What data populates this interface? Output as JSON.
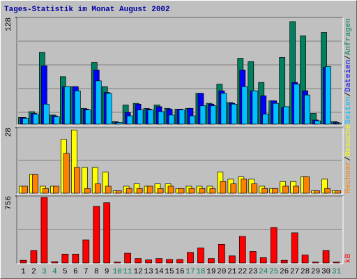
{
  "chart_data": [
    {
      "type": "bar",
      "title": "Tages-Statistik im Monat August 2002",
      "ylim": [
        0,
        128
      ],
      "yticks": [
        128
      ],
      "legend_separator": "/",
      "series": [
        {
          "name": "Anfragen",
          "color": "#008060",
          "values": [
            8,
            15,
            86,
            11,
            57,
            45,
            19,
            74,
            45,
            3,
            23,
            25,
            19,
            23,
            19,
            18,
            19,
            37,
            25,
            48,
            26,
            79,
            75,
            50,
            28,
            80,
            123,
            106,
            13,
            110,
            3
          ]
        },
        {
          "name": "Dateien",
          "color": "#0000ff",
          "values": [
            8,
            13,
            70,
            10,
            45,
            45,
            18,
            65,
            38,
            2,
            14,
            24,
            18,
            21,
            18,
            18,
            19,
            37,
            24,
            40,
            25,
            65,
            40,
            34,
            28,
            20,
            50,
            40,
            5,
            68,
            2
          ]
        },
        {
          "name": "Seiten",
          "color": "#00c0ff",
          "values": [
            7,
            12,
            24,
            9,
            45,
            40,
            17,
            52,
            37,
            2,
            10,
            17,
            17,
            15,
            11,
            17,
            10,
            22,
            22,
            37,
            24,
            45,
            40,
            12,
            25,
            21,
            48,
            35,
            4,
            69,
            1
          ]
        }
      ]
    },
    {
      "type": "bar",
      "ylim": [
        0,
        28
      ],
      "yticks": [
        28
      ],
      "legend_separator": "/",
      "series": [
        {
          "name": "Besuche",
          "color": "#ffff00",
          "values": [
            3,
            8,
            3,
            3,
            23,
            27,
            11,
            11,
            9,
            1,
            3,
            4,
            3,
            4,
            4,
            2,
            3,
            3,
            3,
            9,
            6,
            7,
            6,
            3,
            2,
            5,
            5,
            7,
            1,
            6,
            1
          ]
        },
        {
          "name": "Rechner",
          "color": "#ff8000",
          "values": [
            3,
            8,
            2,
            3,
            17,
            11,
            2,
            4,
            3,
            1,
            2,
            2,
            3,
            2,
            3,
            2,
            2,
            2,
            2,
            5,
            4,
            6,
            4,
            2,
            2,
            3,
            3,
            7,
            1,
            2,
            1
          ]
        }
      ]
    },
    {
      "type": "bar",
      "ylim": [
        0,
        756
      ],
      "yticks": [
        756
      ],
      "categories": [
        "1",
        "2",
        "3",
        "4",
        "5",
        "6",
        "7",
        "8",
        "9",
        "10",
        "11",
        "12",
        "13",
        "14",
        "15",
        "16",
        "17",
        "18",
        "19",
        "20",
        "21",
        "22",
        "23",
        "24",
        "25",
        "26",
        "27",
        "28",
        "29",
        "30",
        "31"
      ],
      "category_colors": [
        "#000000",
        "#000000",
        "#008060",
        "#008060",
        "#000000",
        "#000000",
        "#000000",
        "#000000",
        "#000000",
        "#008060",
        "#008060",
        "#000000",
        "#000000",
        "#000000",
        "#000000",
        "#000000",
        "#008060",
        "#008060",
        "#000000",
        "#000000",
        "#000000",
        "#000000",
        "#000000",
        "#008060",
        "#008060",
        "#000000",
        "#000000",
        "#000000",
        "#000000",
        "#000000",
        "#008060"
      ],
      "series": [
        {
          "name": "kB",
          "color": "#ff0000",
          "values": [
            30,
            140,
            740,
            15,
            100,
            100,
            260,
            640,
            680,
            10,
            110,
            50,
            35,
            50,
            40,
            40,
            120,
            170,
            50,
            210,
            80,
            300,
            130,
            60,
            400,
            30,
            340,
            90,
            10,
            140,
            10
          ]
        }
      ]
    }
  ]
}
